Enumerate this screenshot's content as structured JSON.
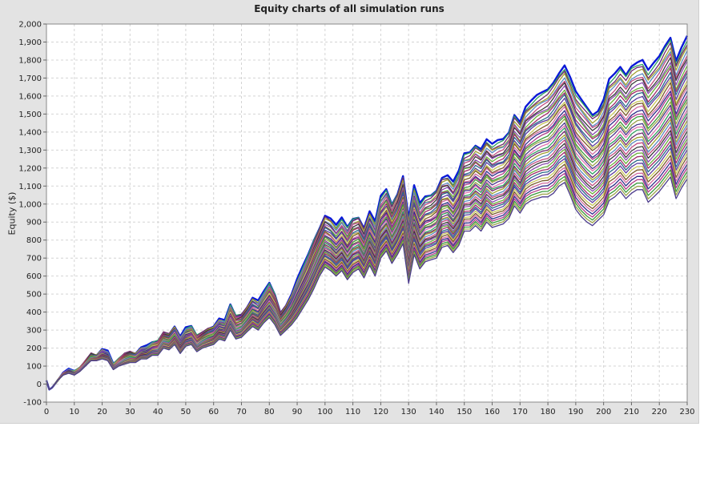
{
  "chart_data": {
    "type": "line",
    "title": "Equity charts of all simulation runs",
    "xlabel": "",
    "ylabel": "Equity ($)",
    "xlim": [
      0,
      230
    ],
    "ylim": [
      -100,
      2000
    ],
    "grid": true,
    "legend": "none",
    "x_ticks": [
      "0",
      "10",
      "20",
      "30",
      "40",
      "50",
      "60",
      "70",
      "80",
      "90",
      "100",
      "110",
      "120",
      "130",
      "140",
      "150",
      "160",
      "170",
      "180",
      "190",
      "200",
      "210",
      "220",
      "230"
    ],
    "y_ticks": [
      "-100",
      "0",
      "100",
      "200",
      "300",
      "400",
      "500",
      "600",
      "700",
      "800",
      "900",
      "1,000",
      "1,100",
      "1,200",
      "1,300",
      "1,400",
      "1,500",
      "1,600",
      "1,700",
      "1,800",
      "1,900",
      "2,000"
    ],
    "series_count": 40,
    "top_envelope": {
      "x": [
        0,
        1,
        2,
        4,
        6,
        8,
        10,
        12,
        14,
        16,
        18,
        20,
        22,
        24,
        26,
        28,
        30,
        32,
        34,
        36,
        38,
        40,
        42,
        44,
        46,
        48,
        50,
        52,
        54,
        56,
        58,
        60,
        62,
        64,
        66,
        68,
        70,
        72,
        74,
        76,
        78,
        80,
        82,
        84,
        86,
        88,
        90,
        92,
        94,
        96,
        98,
        100,
        102,
        104,
        106,
        108,
        110,
        112,
        114,
        116,
        118,
        120,
        122,
        124,
        126,
        128,
        130,
        132,
        134,
        136,
        138,
        140,
        142,
        144,
        146,
        148,
        150,
        152,
        154,
        156,
        158,
        160,
        162,
        164,
        166,
        168,
        170,
        172,
        174,
        176,
        178,
        180,
        182,
        184,
        186,
        188,
        190,
        192,
        194,
        196,
        198,
        200,
        202,
        204,
        206,
        208,
        210,
        212,
        214,
        216,
        218,
        220,
        222,
        224,
        226,
        228,
        230
      ],
      "y": [
        20,
        -30,
        -20,
        20,
        60,
        80,
        70,
        90,
        130,
        170,
        160,
        190,
        180,
        110,
        140,
        170,
        180,
        170,
        200,
        210,
        230,
        240,
        290,
        280,
        320,
        260,
        310,
        320,
        270,
        290,
        310,
        320,
        360,
        350,
        440,
        380,
        390,
        430,
        480,
        460,
        510,
        560,
        500,
        400,
        440,
        500,
        580,
        650,
        720,
        800,
        870,
        940,
        920,
        880,
        920,
        870,
        920,
        930,
        870,
        960,
        900,
        1040,
        1080,
        1000,
        1060,
        1160,
        920,
        1100,
        1000,
        1040,
        1050,
        1080,
        1150,
        1160,
        1120,
        1180,
        1280,
        1290,
        1330,
        1310,
        1360,
        1330,
        1350,
        1360,
        1400,
        1500,
        1460,
        1540,
        1570,
        1600,
        1620,
        1640,
        1680,
        1730,
        1770,
        1700,
        1620,
        1580,
        1540,
        1500,
        1520,
        1580,
        1690,
        1720,
        1760,
        1720,
        1770,
        1790,
        1800,
        1740,
        1780,
        1820,
        1880,
        1930,
        1800,
        1870,
        1930
      ]
    },
    "bottom_envelope": {
      "x": [
        0,
        1,
        2,
        4,
        6,
        8,
        10,
        12,
        14,
        16,
        18,
        20,
        22,
        24,
        26,
        28,
        30,
        32,
        34,
        36,
        38,
        40,
        42,
        44,
        46,
        48,
        50,
        52,
        54,
        56,
        58,
        60,
        62,
        64,
        66,
        68,
        70,
        72,
        74,
        76,
        78,
        80,
        82,
        84,
        86,
        88,
        90,
        92,
        94,
        96,
        98,
        100,
        102,
        104,
        106,
        108,
        110,
        112,
        114,
        116,
        118,
        120,
        122,
        124,
        126,
        128,
        130,
        132,
        134,
        136,
        138,
        140,
        142,
        144,
        146,
        148,
        150,
        152,
        154,
        156,
        158,
        160,
        162,
        164,
        166,
        168,
        170,
        172,
        174,
        176,
        178,
        180,
        182,
        184,
        186,
        188,
        190,
        192,
        194,
        196,
        198,
        200,
        202,
        204,
        206,
        208,
        210,
        212,
        214,
        216,
        218,
        220,
        222,
        224,
        226,
        228,
        230
      ],
      "y": [
        20,
        -30,
        -20,
        20,
        50,
        60,
        50,
        70,
        100,
        130,
        130,
        140,
        130,
        80,
        100,
        110,
        120,
        120,
        140,
        140,
        160,
        160,
        200,
        190,
        220,
        170,
        210,
        220,
        180,
        200,
        210,
        220,
        250,
        240,
        300,
        250,
        260,
        290,
        320,
        300,
        340,
        370,
        330,
        270,
        300,
        330,
        370,
        420,
        470,
        530,
        600,
        650,
        630,
        600,
        630,
        580,
        620,
        640,
        590,
        660,
        600,
        700,
        740,
        670,
        720,
        780,
        560,
        720,
        640,
        680,
        690,
        700,
        760,
        770,
        730,
        770,
        850,
        850,
        880,
        850,
        900,
        870,
        880,
        890,
        920,
        990,
        950,
        1000,
        1020,
        1030,
        1040,
        1040,
        1060,
        1100,
        1120,
        1050,
        970,
        930,
        900,
        880,
        910,
        940,
        1020,
        1040,
        1070,
        1030,
        1060,
        1080,
        1080,
        1010,
        1040,
        1070,
        1110,
        1150,
        1030,
        1090,
        1140
      ]
    }
  }
}
